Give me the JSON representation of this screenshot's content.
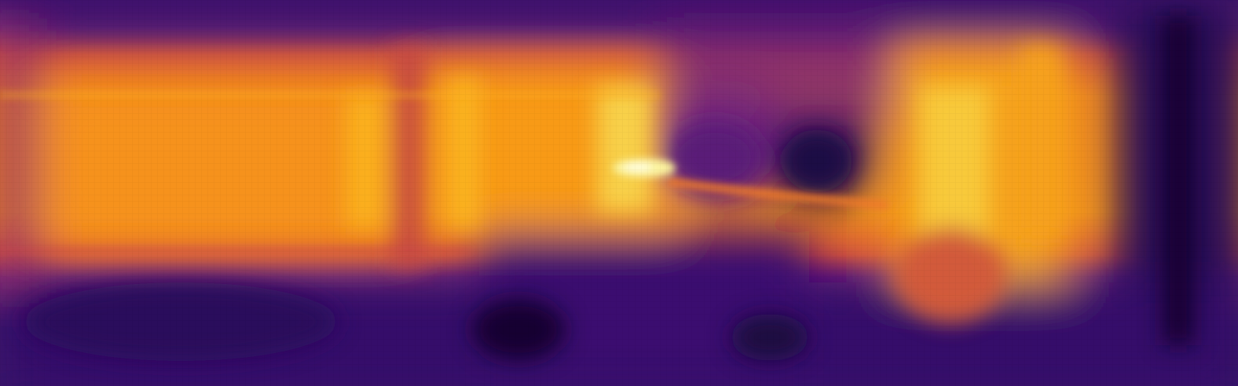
{
  "image": {
    "kind": "depth-heatmap",
    "colormap": "inferno",
    "palette": {
      "darkest": "#0d0523",
      "deep_purple": "#3a0f6e",
      "purple": "#5b1a7a",
      "magenta": "#8a2a78",
      "red_orange": "#d04a3c",
      "orange": "#f0801c",
      "bright_orange": "#fba10e",
      "yellow": "#f5d94a",
      "pale_yellow": "#fcffa4"
    }
  }
}
